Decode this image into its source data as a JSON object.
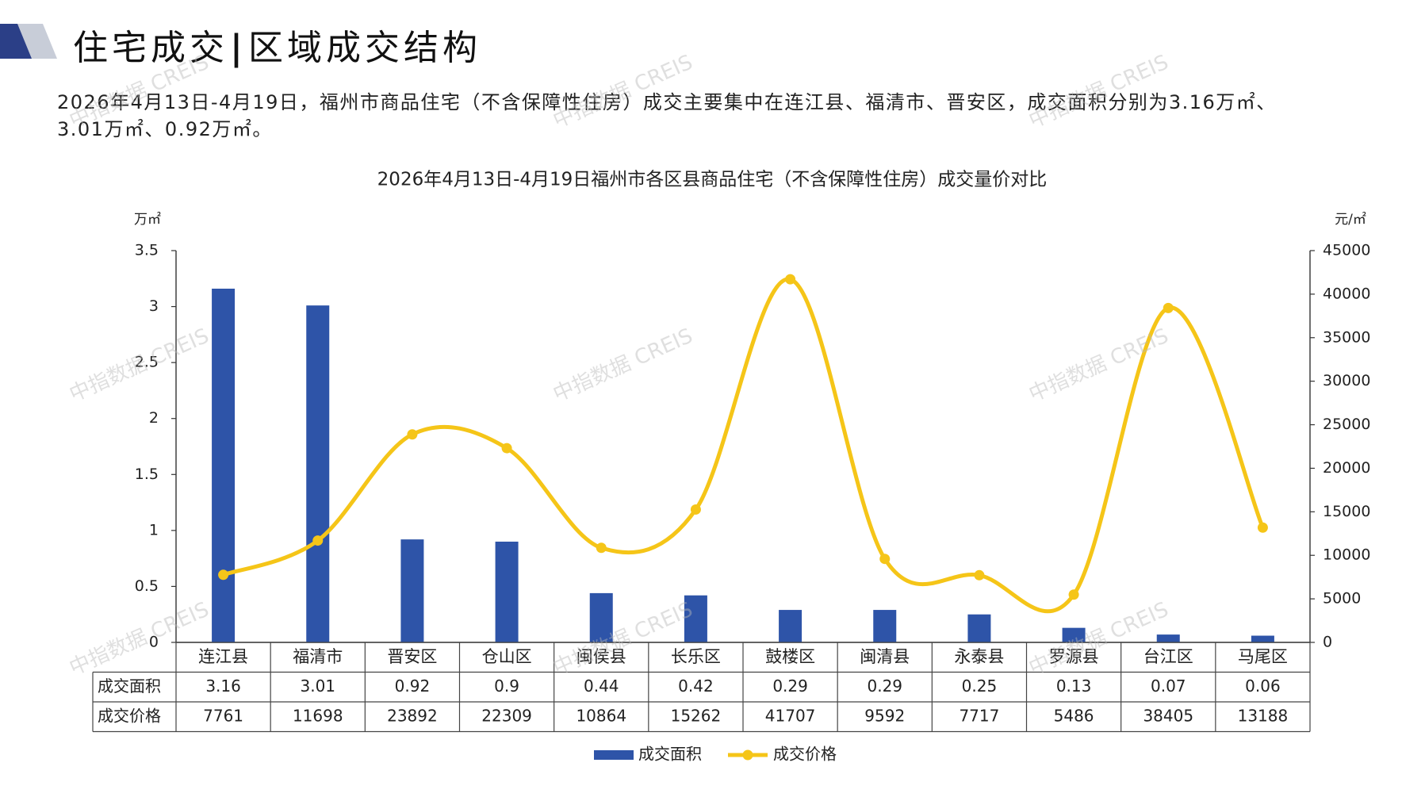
{
  "header": {
    "title_left": "住宅成交",
    "title_sep": "|",
    "title_right": "区域成交结构"
  },
  "intro": {
    "line1": "2026年4月13日-4月19日，福州市商品住宅（不含保障性住房）成交主要集中在连江县、福清市、晋安区，成交面积分别为3.16万㎡、",
    "line2": "3.01万㎡、0.92万㎡。"
  },
  "watermark": "中指数据 CREIS",
  "colors": {
    "bar": "#2E54A8",
    "line": "#F5C518",
    "logo_dark": "#2B3F87",
    "logo_light": "#C8CDD8"
  },
  "chart_data": {
    "type": "bar",
    "title": "2026年4月13日-4月19日福州市各区县商品住宅（不含保障性住房）成交量价对比",
    "y_left_unit": "万㎡",
    "y_right_unit": "元/㎡",
    "ylim_left": [
      0,
      3.5
    ],
    "ylim_right": [
      0,
      45000
    ],
    "y_left_ticks": [
      "3.5",
      "3",
      "2.5",
      "2",
      "1.5",
      "1",
      "0.5",
      "0"
    ],
    "y_right_ticks": [
      "45000",
      "40000",
      "35000",
      "30000",
      "25000",
      "20000",
      "15000",
      "10000",
      "5000",
      "0"
    ],
    "categories": [
      "连江县",
      "福清市",
      "晋安区",
      "仓山区",
      "闽侯县",
      "长乐区",
      "鼓楼区",
      "闽清县",
      "永泰县",
      "罗源县",
      "台江区",
      "马尾区"
    ],
    "series": [
      {
        "name": "成交面积",
        "type": "bar",
        "axis": "left",
        "values": [
          3.16,
          3.01,
          0.92,
          0.9,
          0.44,
          0.42,
          0.29,
          0.29,
          0.25,
          0.13,
          0.07,
          0.06
        ],
        "labels": [
          "3.16",
          "3.01",
          "0.92",
          "0.9",
          "0.44",
          "0.42",
          "0.29",
          "0.29",
          "0.25",
          "0.13",
          "0.07",
          "0.06"
        ]
      },
      {
        "name": "成交价格",
        "type": "line",
        "axis": "right",
        "values": [
          7761,
          11698,
          23892,
          22309,
          10864,
          15262,
          41707,
          9592,
          7717,
          5486,
          38405,
          13188
        ],
        "labels": [
          "7761",
          "11698",
          "23892",
          "22309",
          "10864",
          "15262",
          "41707",
          "9592",
          "7717",
          "5486",
          "38405",
          "13188"
        ]
      }
    ],
    "legend_position": "bottom",
    "grid": false
  }
}
